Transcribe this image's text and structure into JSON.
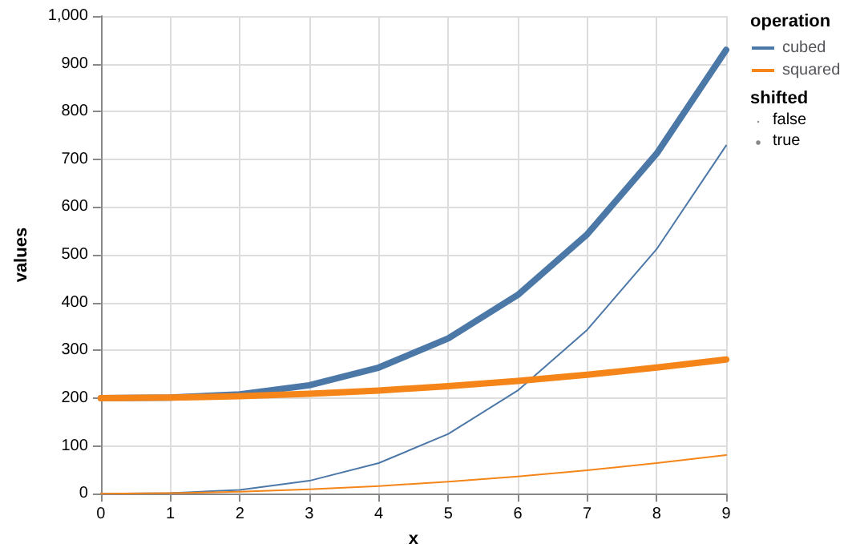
{
  "chart_data": {
    "type": "line",
    "xlabel": "x",
    "ylabel": "values",
    "legend_title": "operation",
    "legend": "top right",
    "grid": true,
    "marker": "none",
    "line_style": "solid",
    "x": [
      0,
      1,
      2,
      3,
      4,
      5,
      6,
      7,
      8,
      9
    ],
    "xlim": [
      0,
      9
    ],
    "xticks": [
      0,
      1,
      2,
      3,
      4,
      5,
      6,
      7,
      8,
      9
    ],
    "ylim": [
      0,
      1000
    ],
    "yticks": [
      0,
      100,
      200,
      300,
      400,
      500,
      600,
      700,
      800,
      {
        "value": 900,
        "label": "900"
      },
      {
        "value": 1000,
        "label": "1,000"
      }
    ],
    "series": [
      {
        "name": "cubed",
        "color": "#4c78a8",
        "values": [
          0,
          1,
          8,
          27,
          64,
          125,
          216,
          343,
          512,
          729
        ]
      },
      {
        "name": "squared",
        "color": "#f58518",
        "values": [
          0,
          1,
          4,
          9,
          16,
          25,
          36,
          49,
          64,
          81
        ]
      },
      {
        "color": "#4c78a8",
        "values": [
          200,
          201,
          208,
          227,
          264,
          325,
          416,
          543,
          712,
          929
        ]
      },
      {
        "color": "#f58518",
        "values": [
          200,
          201,
          204,
          209,
          216,
          225,
          236,
          249,
          264,
          281
        ]
      }
    ],
    "annotations": [
      "shifted",
      "false",
      "true"
    ]
  }
}
